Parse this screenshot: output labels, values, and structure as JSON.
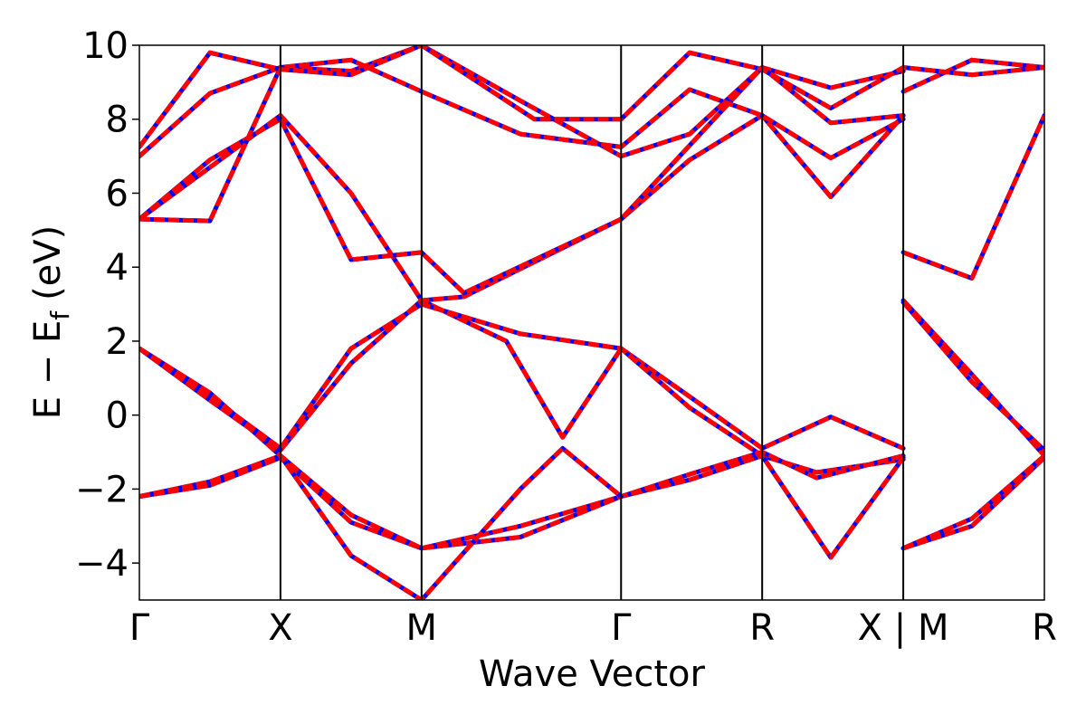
{
  "chart_data": {
    "type": "line",
    "xlabel": "Wave Vector",
    "ylabel": "E − E",
    "ylabel_sub": "f",
    "ylabel_unit": "(eV)",
    "ylim": [
      -5,
      10
    ],
    "yticks": [
      -4,
      -2,
      0,
      2,
      4,
      6,
      8,
      10
    ],
    "ytick_labels": [
      "−4",
      "−2",
      "0",
      "2",
      "4",
      "6",
      "8",
      "10"
    ],
    "kpoints": [
      {
        "label": "Γ",
        "pos": 0.0
      },
      {
        "label": "X",
        "pos": 1.0
      },
      {
        "label": "M",
        "pos": 2.0
      },
      {
        "label": "Γ",
        "pos": 3.414
      },
      {
        "label": "R",
        "pos": 4.414
      },
      {
        "label": "X | M",
        "pos": 5.414
      },
      {
        "label": "R",
        "pos": 6.414
      }
    ],
    "xlim": [
      0,
      6.414
    ],
    "grid": false,
    "legend": "none",
    "series_style": [
      {
        "color": "#0000ff",
        "style": "solid"
      },
      {
        "color": "#ff0000",
        "style": "dashed"
      }
    ],
    "bands": [
      [
        [
          0,
          -2.2
        ],
        [
          0.5,
          -1.9
        ],
        [
          1.0,
          -1.15
        ],
        [
          1.5,
          -2.9
        ],
        [
          2.0,
          -3.6
        ],
        [
          2.7,
          -3.0
        ],
        [
          3.414,
          -2.2
        ],
        [
          3.9,
          -1.75
        ],
        [
          4.414,
          -1.1
        ],
        [
          4.8,
          -1.55
        ],
        [
          5.414,
          -1.2
        ],
        [
          5.414,
          -3.6
        ],
        [
          5.9,
          -3.0
        ],
        [
          6.414,
          -1.15
        ]
      ],
      [
        [
          0,
          -2.2
        ],
        [
          0.5,
          -1.8
        ],
        [
          1.0,
          -1.1
        ],
        [
          1.5,
          -2.7
        ],
        [
          2.0,
          -3.6
        ],
        [
          2.7,
          -3.3
        ],
        [
          3.414,
          -2.2
        ],
        [
          3.9,
          -1.6
        ],
        [
          4.414,
          -1.0
        ],
        [
          4.8,
          -1.7
        ],
        [
          5.414,
          -1.1
        ],
        [
          5.414,
          -3.6
        ],
        [
          5.9,
          -2.8
        ],
        [
          6.414,
          -1.1
        ]
      ],
      [
        [
          0,
          1.8
        ],
        [
          0.5,
          0.6
        ],
        [
          1.0,
          -1.1
        ],
        [
          1.5,
          -3.8
        ],
        [
          2.0,
          -5.0
        ],
        [
          2.7,
          -2.0
        ],
        [
          3.0,
          -0.9
        ],
        [
          3.414,
          -2.2
        ]
      ],
      [
        [
          0,
          1.8
        ],
        [
          0.5,
          0.4
        ],
        [
          1.0,
          -0.95
        ],
        [
          1.5,
          1.4
        ],
        [
          2.0,
          3.1
        ],
        [
          2.6,
          2.0
        ],
        [
          3.0,
          -0.6
        ],
        [
          3.414,
          1.8
        ],
        [
          3.9,
          0.5
        ],
        [
          4.414,
          -0.9
        ],
        [
          4.9,
          -0.05
        ],
        [
          5.414,
          -0.9
        ],
        [
          5.414,
          3.1
        ],
        [
          5.9,
          1.1
        ],
        [
          6.414,
          -1.1
        ]
      ],
      [
        [
          0,
          1.8
        ],
        [
          0.5,
          0.5
        ],
        [
          1.0,
          -0.9
        ],
        [
          1.5,
          1.8
        ],
        [
          2.0,
          3.0
        ],
        [
          2.7,
          2.2
        ],
        [
          3.414,
          1.8
        ],
        [
          3.9,
          0.2
        ],
        [
          4.414,
          -1.1
        ],
        [
          4.9,
          -3.85
        ],
        [
          5.414,
          -1.15
        ],
        [
          5.414,
          3.05
        ],
        [
          5.9,
          0.9
        ],
        [
          6.414,
          -0.95
        ]
      ],
      [
        [
          0,
          5.3
        ],
        [
          0.5,
          6.7
        ],
        [
          1.0,
          8.1
        ],
        [
          1.5,
          6.0
        ],
        [
          2.0,
          3.1
        ],
        [
          2.3,
          3.2
        ],
        [
          3.414,
          5.3
        ],
        [
          3.9,
          6.9
        ],
        [
          4.414,
          8.1
        ],
        [
          4.9,
          5.9
        ],
        [
          5.414,
          8.1
        ]
      ],
      [
        [
          0,
          5.3
        ],
        [
          0.5,
          6.9
        ],
        [
          1.0,
          8.0
        ],
        [
          1.5,
          4.2
        ],
        [
          2.0,
          4.4
        ],
        [
          2.3,
          3.3
        ],
        [
          3.414,
          5.3
        ],
        [
          4.414,
          9.4
        ],
        [
          4.9,
          8.85
        ],
        [
          5.414,
          9.3
        ]
      ],
      [
        [
          0,
          5.3
        ],
        [
          0.5,
          5.25
        ],
        [
          1.0,
          9.4
        ],
        [
          1.5,
          9.3
        ],
        [
          2.0,
          10.0
        ],
        [
          2.7,
          8.5
        ],
        [
          3.414,
          7.0
        ],
        [
          3.9,
          7.6
        ],
        [
          4.414,
          9.4
        ],
        [
          4.9,
          7.9
        ],
        [
          5.414,
          8.1
        ],
        [
          5.414,
          4.4
        ],
        [
          5.9,
          3.7
        ],
        [
          6.414,
          8.1
        ]
      ],
      [
        [
          0,
          7.0
        ],
        [
          0.5,
          8.7
        ],
        [
          1.0,
          9.4
        ],
        [
          1.5,
          9.6
        ],
        [
          2.0,
          8.75
        ],
        [
          2.7,
          7.6
        ],
        [
          3.414,
          7.25
        ],
        [
          3.9,
          8.8
        ],
        [
          4.414,
          8.1
        ],
        [
          4.9,
          6.95
        ],
        [
          5.414,
          8.0
        ],
        [
          5.414,
          8.75
        ],
        [
          5.9,
          9.6
        ],
        [
          6.414,
          9.4
        ]
      ],
      [
        [
          0,
          7.25
        ],
        [
          0.5,
          9.8
        ],
        [
          1.0,
          9.35
        ],
        [
          1.5,
          9.2
        ],
        [
          2.0,
          10.0
        ],
        [
          2.8,
          8.0
        ],
        [
          3.414,
          8.0
        ],
        [
          3.9,
          9.8
        ],
        [
          4.414,
          9.35
        ],
        [
          4.9,
          8.3
        ],
        [
          5.414,
          9.4
        ],
        [
          5.9,
          9.2
        ],
        [
          6.414,
          9.4
        ]
      ]
    ]
  }
}
